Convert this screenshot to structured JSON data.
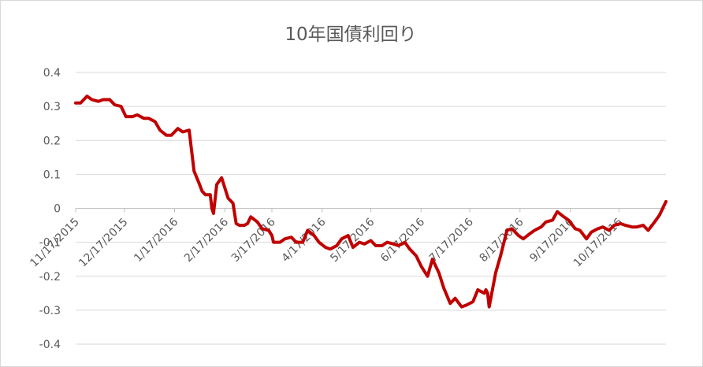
{
  "chart_data": {
    "type": "line",
    "title": "10年国債利回り",
    "xlabel": "",
    "ylabel": "",
    "ylim": [
      -0.4,
      0.4
    ],
    "y_ticks": [
      "0.4",
      "0.3",
      "0.2",
      "0.1",
      "0",
      "-0.1",
      "-0.2",
      "-0.3",
      "-0.4"
    ],
    "y_tick_values": [
      0.4,
      0.3,
      0.2,
      0.1,
      0,
      -0.1,
      -0.2,
      -0.3,
      -0.4
    ],
    "x_ticks": [
      "11/17/2015",
      "12/17/2015",
      "1/17/2016",
      "2/17/2016",
      "3/17/2016",
      "4/17/2016",
      "5/17/2016",
      "6/17/2016",
      "7/17/2016",
      "8/17/2016",
      "9/17/2016",
      "10/17/2016"
    ],
    "grid": true,
    "legend": "none",
    "line_color": "#c00000",
    "series": [
      {
        "x": [
          "2015-11-17",
          "2015-11-20",
          "2015-11-24",
          "2015-11-27",
          "2015-12-01",
          "2015-12-04",
          "2015-12-08",
          "2015-12-11",
          "2015-12-15",
          "2015-12-18",
          "2015-12-22",
          "2015-12-25",
          "2015-12-29",
          "2016-01-01",
          "2016-01-05",
          "2016-01-08",
          "2016-01-12",
          "2016-01-15",
          "2016-01-19",
          "2016-01-22",
          "2016-01-26",
          "2016-01-29",
          "2016-02-01",
          "2016-02-03",
          "2016-02-05",
          "2016-02-08",
          "2016-02-09",
          "2016-02-10",
          "2016-02-12",
          "2016-02-15",
          "2016-02-17",
          "2016-02-19",
          "2016-02-22",
          "2016-02-24",
          "2016-02-26",
          "2016-02-29",
          "2016-03-02",
          "2016-03-04",
          "2016-03-08",
          "2016-03-11",
          "2016-03-15",
          "2016-03-17",
          "2016-03-18",
          "2016-03-22",
          "2016-03-25",
          "2016-03-29",
          "2016-04-01",
          "2016-04-05",
          "2016-04-08",
          "2016-04-12",
          "2016-04-15",
          "2016-04-19",
          "2016-04-22",
          "2016-04-26",
          "2016-04-29",
          "2016-05-03",
          "2016-05-06",
          "2016-05-10",
          "2016-05-13",
          "2016-05-17",
          "2016-05-20",
          "2016-05-24",
          "2016-05-27",
          "2016-05-31",
          "2016-06-03",
          "2016-06-07",
          "2016-06-10",
          "2016-06-14",
          "2016-06-17",
          "2016-06-21",
          "2016-06-24",
          "2016-06-28",
          "2016-07-01",
          "2016-07-05",
          "2016-07-08",
          "2016-07-12",
          "2016-07-15",
          "2016-07-19",
          "2016-07-22",
          "2016-07-26",
          "2016-07-27",
          "2016-07-28",
          "2016-07-29",
          "2016-08-02",
          "2016-08-05",
          "2016-08-09",
          "2016-08-12",
          "2016-08-16",
          "2016-08-19",
          "2016-08-23",
          "2016-08-26",
          "2016-08-30",
          "2016-09-02",
          "2016-09-06",
          "2016-09-09",
          "2016-09-13",
          "2016-09-16",
          "2016-09-20",
          "2016-09-23",
          "2016-09-27",
          "2016-09-30",
          "2016-10-04",
          "2016-10-07",
          "2016-10-11",
          "2016-10-14",
          "2016-10-18",
          "2016-10-21",
          "2016-10-25",
          "2016-10-28",
          "2016-11-01",
          "2016-11-04",
          "2016-11-08",
          "2016-11-11",
          "2016-11-15"
        ],
        "values": [
          0.31,
          0.31,
          0.33,
          0.32,
          0.315,
          0.32,
          0.32,
          0.305,
          0.3,
          0.27,
          0.27,
          0.275,
          0.265,
          0.265,
          0.255,
          0.23,
          0.215,
          0.215,
          0.235,
          0.225,
          0.23,
          0.11,
          0.075,
          0.05,
          0.04,
          0.04,
          0.0,
          -0.015,
          0.07,
          0.09,
          0.06,
          0.03,
          0.015,
          -0.045,
          -0.05,
          -0.05,
          -0.045,
          -0.025,
          -0.04,
          -0.06,
          -0.065,
          -0.08,
          -0.1,
          -0.1,
          -0.09,
          -0.085,
          -0.1,
          -0.1,
          -0.065,
          -0.08,
          -0.1,
          -0.115,
          -0.12,
          -0.11,
          -0.09,
          -0.08,
          -0.115,
          -0.1,
          -0.105,
          -0.095,
          -0.11,
          -0.11,
          -0.1,
          -0.105,
          -0.11,
          -0.1,
          -0.12,
          -0.14,
          -0.17,
          -0.2,
          -0.15,
          -0.19,
          -0.235,
          -0.28,
          -0.265,
          -0.29,
          -0.285,
          -0.275,
          -0.24,
          -0.25,
          -0.24,
          -0.25,
          -0.29,
          -0.19,
          -0.14,
          -0.065,
          -0.06,
          -0.08,
          -0.09,
          -0.075,
          -0.065,
          -0.055,
          -0.04,
          -0.035,
          -0.01,
          -0.025,
          -0.035,
          -0.06,
          -0.065,
          -0.09,
          -0.07,
          -0.06,
          -0.055,
          -0.065,
          -0.05,
          -0.045,
          -0.05,
          -0.055,
          -0.055,
          -0.05,
          -0.065,
          -0.04,
          -0.02,
          0.02
        ]
      }
    ]
  }
}
